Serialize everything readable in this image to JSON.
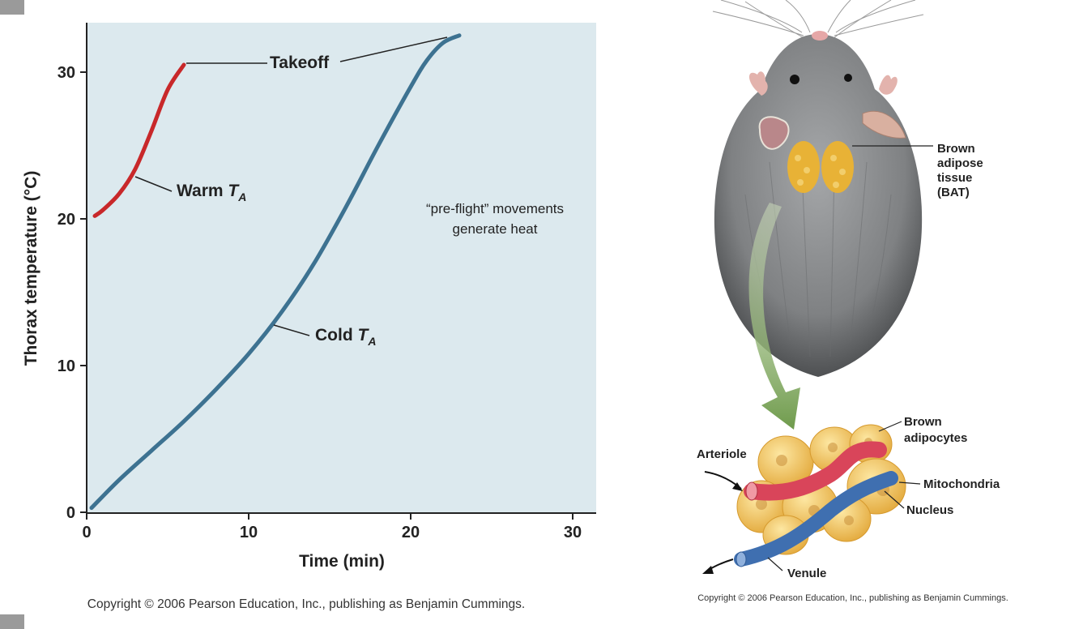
{
  "chart_data": {
    "type": "line",
    "title": "",
    "xlabel": "Time (min)",
    "ylabel": "Thorax temperature (°C)",
    "xlim": [
      0,
      31
    ],
    "ylim": [
      0,
      33.5
    ],
    "x_ticks": [
      "0",
      "10",
      "20",
      "30"
    ],
    "y_ticks": [
      "0",
      "10",
      "20",
      "30"
    ],
    "background_color": "#dce9ee",
    "series": [
      {
        "name": "Warm T_A",
        "label_main": "Warm ",
        "label_italic": "T",
        "label_sub": "A",
        "color": "#c8282a",
        "x": [
          0.5,
          1.0,
          2.0,
          3.0,
          4.0,
          5.0,
          6.0
        ],
        "y": [
          20.2,
          20.6,
          21.7,
          23.4,
          26.0,
          28.8,
          30.5
        ]
      },
      {
        "name": "Cold T_A",
        "label_main": "Cold ",
        "label_italic": "T",
        "label_sub": "A",
        "color": "#3d7291",
        "x": [
          0.3,
          2,
          4,
          6,
          8,
          10,
          12,
          14,
          16,
          18,
          20,
          21,
          22,
          23
        ],
        "y": [
          0.3,
          2.2,
          4.2,
          6.2,
          8.4,
          10.8,
          13.6,
          16.9,
          20.8,
          25.0,
          29.0,
          30.8,
          32.0,
          32.5
        ]
      }
    ],
    "annotations": {
      "takeoff": "Takeoff",
      "note_line1": "“pre-flight” movements",
      "note_line2": "generate heat"
    }
  },
  "copyright": {
    "chart": "Copyright © 2006 Pearson Education, Inc., publishing as Benjamin Cummings.",
    "illustration": "Copyright © 2006 Pearson Education, Inc., publishing as Benjamin Cummings."
  },
  "illustration": {
    "labels": {
      "bat_line1": "Brown",
      "bat_line2": "adipose",
      "bat_line3": "tissue",
      "bat_line4": "(BAT)",
      "adipocytes_line1": "Brown",
      "adipocytes_line2": "adipocytes",
      "arteriole": "Arteriole",
      "mitochondria": "Mitochondria",
      "nucleus": "Nucleus",
      "venule": "Venule"
    },
    "colors": {
      "fur": "#8a8c8e",
      "bat": "#e8b236",
      "arrow": "#7ba25a",
      "arteriole": "#d9455a",
      "venule": "#3f6fb0",
      "adipocyte": "#f2c95e"
    }
  }
}
